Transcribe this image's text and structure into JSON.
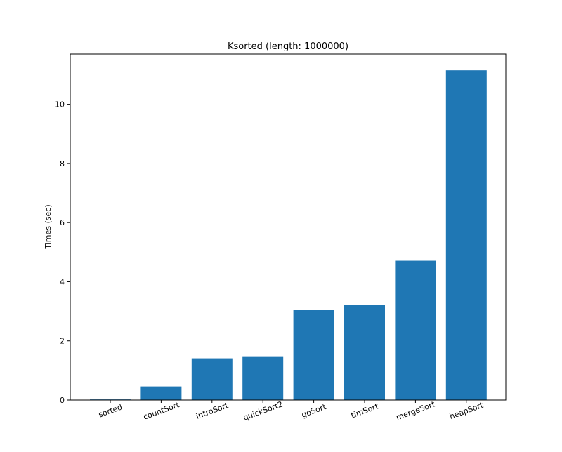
{
  "chart_data": {
    "type": "bar",
    "title": "Ksorted (length: 1000000)",
    "xlabel": "",
    "ylabel": "Times (sec)",
    "categories": [
      "sorted",
      "countSort",
      "introSort",
      "quickSort2",
      "goSort",
      "timSort",
      "mergeSort",
      "heapSort"
    ],
    "values": [
      0.02,
      0.46,
      1.41,
      1.48,
      3.05,
      3.22,
      4.71,
      11.15
    ],
    "ylim": [
      0,
      11.7
    ],
    "yticks": [
      0,
      2,
      4,
      6,
      8,
      10
    ],
    "grid": false,
    "legend": "none",
    "bar_color": "#1f77b4",
    "xtick_rotation_deg": 20
  }
}
